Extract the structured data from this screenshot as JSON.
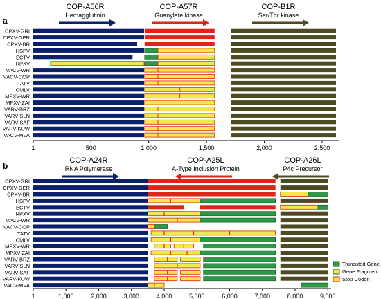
{
  "colors": {
    "navy": "#0b1f6b",
    "red": "#e2231a",
    "olive": "#4b4a22",
    "green": "#2e9a48",
    "yellow": "#f3e84a",
    "stopBorder": "#e2231a",
    "axis": "#000000"
  },
  "panel_a": {
    "label": "a",
    "genes": [
      {
        "name": "COP-A56R",
        "product": "Hemagglutinin",
        "arrow": "right",
        "color": "navy"
      },
      {
        "name": "COP-A57R",
        "product": "Guanylate kinase",
        "arrow": "right",
        "color": "red"
      },
      {
        "name": "COP-B1R",
        "product": "Ser/Thr kinase",
        "arrow": "right",
        "color": "olive"
      }
    ],
    "strains": [
      "CPXV-GRI",
      "CPXV-GER",
      "CPXV-BR",
      "HSPV",
      "ECTV",
      "RPXV",
      "VACV-WR",
      "VACV-COP",
      "TATV",
      "CMLV",
      "MPXV-WR",
      "MPXV-ZAI",
      "VARV-BRZ",
      "VARV-SLN",
      "VARV-SAF",
      "VARV-KUW",
      "VACV-MVA"
    ],
    "x_axis": {
      "min": 1,
      "max": 2650,
      "ticks": [
        1,
        500,
        1000,
        1500,
        2000,
        2500
      ],
      "tick_labels": [
        "1",
        "500",
        "1,000",
        "1,500",
        "2,000",
        "2,500"
      ]
    },
    "tracks": [
      [
        {
          "s": 1,
          "e": 960,
          "c": "navy"
        },
        {
          "s": 965,
          "e": 1570,
          "c": "red"
        },
        {
          "s": 1710,
          "e": 2620,
          "c": "olive"
        }
      ],
      [
        {
          "s": 1,
          "e": 960,
          "c": "navy"
        },
        {
          "s": 965,
          "e": 1570,
          "c": "red"
        },
        {
          "s": 1710,
          "e": 2620,
          "c": "olive"
        }
      ],
      [
        {
          "s": 1,
          "e": 900,
          "c": "navy"
        },
        {
          "s": 965,
          "e": 1570,
          "c": "red"
        },
        {
          "s": 1710,
          "e": 2620,
          "c": "olive"
        }
      ],
      [
        {
          "s": 1,
          "e": 960,
          "c": "navy"
        },
        {
          "s": 965,
          "e": 1080,
          "c": "green"
        },
        {
          "s": 1080,
          "e": 1570,
          "c": "yellow"
        },
        {
          "s": 1710,
          "e": 2620,
          "c": "olive"
        }
      ],
      [
        {
          "s": 1,
          "e": 860,
          "c": "navy"
        },
        {
          "s": 965,
          "e": 1080,
          "c": "green"
        },
        {
          "s": 1080,
          "e": 1570,
          "c": "yellow"
        },
        {
          "s": 1710,
          "e": 2620,
          "c": "olive"
        }
      ],
      [
        {
          "s": 150,
          "e": 960,
          "c": "yellow"
        },
        {
          "s": 965,
          "e": 1080,
          "c": "green"
        },
        {
          "s": 1080,
          "e": 1570,
          "c": "yellow"
        },
        {
          "s": 1710,
          "e": 2620,
          "c": "olive"
        }
      ],
      [
        {
          "s": 1,
          "e": 960,
          "c": "navy"
        },
        {
          "s": 965,
          "e": 1080,
          "c": "yellow"
        },
        {
          "s": 1080,
          "e": 1570,
          "c": "yellow"
        },
        {
          "s": 1710,
          "e": 2620,
          "c": "olive"
        }
      ],
      [
        {
          "s": 1,
          "e": 960,
          "c": "navy"
        },
        {
          "s": 965,
          "e": 1080,
          "c": "yellow"
        },
        {
          "s": 1080,
          "e": 1570,
          "c": "yellow"
        },
        {
          "s": 1710,
          "e": 2620,
          "c": "olive"
        }
      ],
      [
        {
          "s": 1,
          "e": 960,
          "c": "navy"
        },
        {
          "s": 965,
          "e": 1080,
          "c": "yellow"
        },
        {
          "s": 1080,
          "e": 1570,
          "c": "yellow"
        },
        {
          "s": 1710,
          "e": 2620,
          "c": "olive"
        }
      ],
      [
        {
          "s": 1,
          "e": 960,
          "c": "navy"
        },
        {
          "s": 965,
          "e": 1270,
          "c": "yellow"
        },
        {
          "s": 1270,
          "e": 1570,
          "c": "yellow"
        },
        {
          "s": 1710,
          "e": 2620,
          "c": "olive"
        }
      ],
      [
        {
          "s": 1,
          "e": 960,
          "c": "navy"
        },
        {
          "s": 965,
          "e": 1270,
          "c": "yellow"
        },
        {
          "s": 1270,
          "e": 1570,
          "c": "yellow"
        },
        {
          "s": 1710,
          "e": 2620,
          "c": "olive"
        }
      ],
      [
        {
          "s": 1,
          "e": 960,
          "c": "navy"
        },
        {
          "s": 965,
          "e": 1570,
          "c": "yellow"
        },
        {
          "s": 1710,
          "e": 2620,
          "c": "olive"
        }
      ],
      [
        {
          "s": 1,
          "e": 960,
          "c": "navy"
        },
        {
          "s": 965,
          "e": 1080,
          "c": "yellow"
        },
        {
          "s": 1080,
          "e": 1570,
          "c": "yellow"
        },
        {
          "s": 1710,
          "e": 2620,
          "c": "olive"
        }
      ],
      [
        {
          "s": 1,
          "e": 960,
          "c": "navy"
        },
        {
          "s": 965,
          "e": 1080,
          "c": "yellow"
        },
        {
          "s": 1080,
          "e": 1570,
          "c": "yellow"
        },
        {
          "s": 1710,
          "e": 2620,
          "c": "olive"
        }
      ],
      [
        {
          "s": 1,
          "e": 960,
          "c": "navy"
        },
        {
          "s": 965,
          "e": 1080,
          "c": "yellow"
        },
        {
          "s": 1080,
          "e": 1570,
          "c": "yellow"
        },
        {
          "s": 1710,
          "e": 2620,
          "c": "olive"
        }
      ],
      [
        {
          "s": 1,
          "e": 960,
          "c": "navy"
        },
        {
          "s": 965,
          "e": 1080,
          "c": "yellow"
        },
        {
          "s": 1080,
          "e": 1570,
          "c": "yellow"
        },
        {
          "s": 1710,
          "e": 2620,
          "c": "olive"
        }
      ],
      [
        {
          "s": 1,
          "e": 960,
          "c": "navy"
        },
        {
          "s": 965,
          "e": 1080,
          "c": "yellow"
        },
        {
          "s": 1080,
          "e": 1570,
          "c": "yellow"
        },
        {
          "s": 1710,
          "e": 2620,
          "c": "olive"
        }
      ]
    ]
  },
  "panel_b": {
    "label": "b",
    "genes": [
      {
        "name": "COP-A24R",
        "product": "RNA Polymerase",
        "arrow": "right",
        "color": "navy"
      },
      {
        "name": "COP-A25L",
        "product": "A-Type Inclusion Protein",
        "arrow": "left",
        "color": "red"
      },
      {
        "name": "COP-A26L",
        "product": "P4c Precursor",
        "arrow": "left",
        "color": "olive"
      }
    ],
    "strains": [
      "CPXV-GRI",
      "CPXV-GER",
      "CPXV-BR",
      "HSPV",
      "ECTV",
      "RPXV",
      "VACV-WR",
      "VACV-COP",
      "TATV",
      "CMLV",
      "MPXV-WR",
      "MPXV-ZAI",
      "VARV-BRZ",
      "VARV-SLN",
      "VARV-SAF",
      "VARV-KUW",
      "VACV-MVA"
    ],
    "x_axis": {
      "min": 1,
      "max": 9100,
      "ticks": [
        1,
        1000,
        2000,
        3000,
        4000,
        5000,
        6000,
        7000,
        8000,
        9000
      ],
      "tick_labels": [
        "1",
        "1,000",
        "2,000",
        "3,000",
        "4,000",
        "5,000",
        "6,000",
        "7,000",
        "8,000",
        "9,000"
      ]
    },
    "tracks": [
      [
        {
          "s": 1,
          "e": 3500,
          "c": "navy"
        },
        {
          "s": 3500,
          "e": 7400,
          "c": "red"
        },
        {
          "s": 7550,
          "e": 9000,
          "c": "olive"
        }
      ],
      [
        {
          "s": 1,
          "e": 3500,
          "c": "navy"
        },
        {
          "s": 3500,
          "e": 7400,
          "c": "red"
        },
        {
          "s": 7550,
          "e": 9000,
          "c": "olive"
        }
      ],
      [
        {
          "s": 1,
          "e": 3500,
          "c": "navy"
        },
        {
          "s": 3500,
          "e": 7400,
          "c": "red"
        },
        {
          "s": 7550,
          "e": 8400,
          "c": "yellow"
        },
        {
          "s": 8400,
          "e": 9000,
          "c": "green"
        }
      ],
      [
        {
          "s": 1,
          "e": 3500,
          "c": "navy"
        },
        {
          "s": 3500,
          "e": 5100,
          "c": "yellow"
        },
        {
          "s": 5100,
          "e": 7400,
          "c": "green"
        },
        {
          "s": 7550,
          "e": 9000,
          "c": "olive"
        }
      ],
      [
        {
          "s": 1,
          "e": 3500,
          "c": "navy"
        },
        {
          "s": 3500,
          "e": 4600,
          "c": "red"
        },
        {
          "s": 5100,
          "e": 7400,
          "c": "red"
        },
        {
          "s": 7550,
          "e": 8700,
          "c": "yellow"
        },
        {
          "s": 8700,
          "e": 9000,
          "c": "green"
        }
      ],
      [
        {
          "s": 1,
          "e": 3500,
          "c": "navy"
        },
        {
          "s": 3500,
          "e": 5100,
          "c": "yellow"
        },
        {
          "s": 5100,
          "e": 7400,
          "c": "green"
        },
        {
          "s": 7550,
          "e": 9000,
          "c": "olive"
        }
      ],
      [
        {
          "s": 1,
          "e": 3500,
          "c": "navy"
        },
        {
          "s": 3500,
          "e": 5100,
          "c": "yellow"
        },
        {
          "s": 5100,
          "e": 7400,
          "c": "green"
        },
        {
          "s": 7550,
          "e": 9000,
          "c": "olive"
        }
      ],
      [
        {
          "s": 1,
          "e": 3500,
          "c": "navy"
        },
        {
          "s": 3500,
          "e": 3700,
          "c": "yellow"
        },
        {
          "s": 3700,
          "e": 4100,
          "c": "green"
        },
        {
          "s": 7550,
          "e": 9000,
          "c": "olive"
        }
      ],
      [
        {
          "s": 1,
          "e": 3500,
          "c": "navy"
        },
        {
          "s": 3600,
          "e": 7400,
          "c": "yellow"
        },
        {
          "s": 7550,
          "e": 9000,
          "c": "olive"
        }
      ],
      [
        {
          "s": 1,
          "e": 3500,
          "c": "navy"
        },
        {
          "s": 3600,
          "e": 5100,
          "c": "yellow"
        },
        {
          "s": 5100,
          "e": 7400,
          "c": "green"
        },
        {
          "s": 7550,
          "e": 9000,
          "c": "olive"
        }
      ],
      [
        {
          "s": 1,
          "e": 3500,
          "c": "navy"
        },
        {
          "s": 3700,
          "e": 4200,
          "c": "yellow"
        },
        {
          "s": 4300,
          "e": 4900,
          "c": "yellow"
        },
        {
          "s": 5200,
          "e": 7400,
          "c": "green"
        },
        {
          "s": 7550,
          "e": 9000,
          "c": "olive"
        }
      ],
      [
        {
          "s": 1,
          "e": 3500,
          "c": "navy"
        },
        {
          "s": 3600,
          "e": 5100,
          "c": "yellow"
        },
        {
          "s": 5100,
          "e": 7400,
          "c": "green"
        },
        {
          "s": 7550,
          "e": 9000,
          "c": "olive"
        }
      ],
      [
        {
          "s": 1,
          "e": 3500,
          "c": "navy"
        },
        {
          "s": 3700,
          "e": 4400,
          "c": "yellow"
        },
        {
          "s": 4500,
          "e": 5100,
          "c": "yellow"
        },
        {
          "s": 5200,
          "e": 7400,
          "c": "green"
        },
        {
          "s": 7550,
          "e": 9000,
          "c": "olive"
        }
      ],
      [
        {
          "s": 1,
          "e": 3500,
          "c": "navy"
        },
        {
          "s": 3700,
          "e": 5100,
          "c": "yellow"
        },
        {
          "s": 5200,
          "e": 7400,
          "c": "green"
        },
        {
          "s": 7550,
          "e": 9000,
          "c": "olive"
        }
      ],
      [
        {
          "s": 1,
          "e": 3500,
          "c": "navy"
        },
        {
          "s": 3700,
          "e": 4400,
          "c": "yellow"
        },
        {
          "s": 4500,
          "e": 5100,
          "c": "yellow"
        },
        {
          "s": 5200,
          "e": 7400,
          "c": "green"
        },
        {
          "s": 7550,
          "e": 9000,
          "c": "olive"
        }
      ],
      [
        {
          "s": 1,
          "e": 3500,
          "c": "navy"
        },
        {
          "s": 3700,
          "e": 4400,
          "c": "yellow"
        },
        {
          "s": 4500,
          "e": 5100,
          "c": "yellow"
        },
        {
          "s": 5200,
          "e": 7400,
          "c": "green"
        },
        {
          "s": 7550,
          "e": 9000,
          "c": "olive"
        }
      ],
      [
        {
          "s": 1,
          "e": 3500,
          "c": "navy"
        },
        {
          "s": 3500,
          "e": 4000,
          "c": "yellow"
        },
        {
          "s": 8200,
          "e": 9000,
          "c": "green"
        }
      ]
    ],
    "stop_codons": [
      [],
      [],
      [],
      [
        4200
      ],
      [],
      [
        4000
      ],
      [
        4400
      ],
      [],
      [
        4000,
        4900,
        6000
      ],
      [
        4200
      ],
      [
        4000,
        4600
      ],
      [
        4200,
        4700
      ],
      [
        4100
      ],
      [
        4400
      ],
      [
        4100
      ],
      [
        4100
      ],
      [
        3700
      ]
    ]
  },
  "legend": [
    {
      "label": "Truncated Gene",
      "color": "green"
    },
    {
      "label": "Gene Fragment",
      "color": "yellow"
    },
    {
      "label": "Stop Codon",
      "color": "yellow",
      "border": "stopBorder"
    }
  ]
}
